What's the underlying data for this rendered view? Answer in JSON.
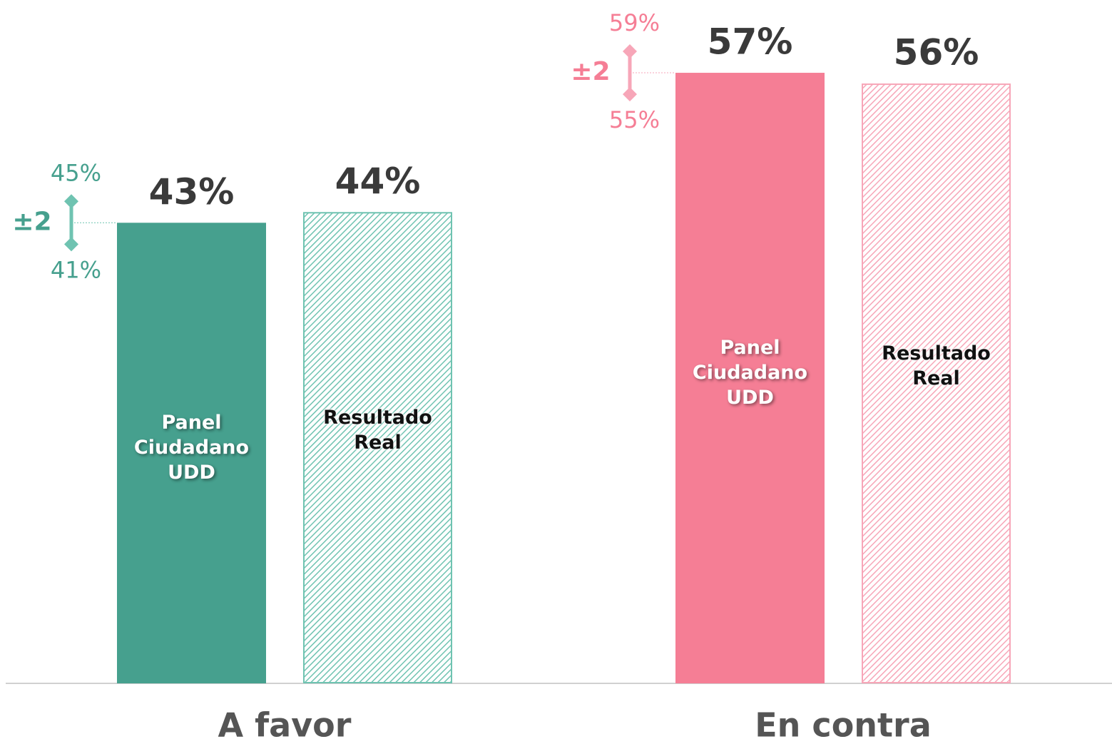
{
  "chart_data": {
    "type": "bar",
    "categories": [
      "A favor",
      "En contra"
    ],
    "series": [
      {
        "name": "Panel Ciudadano UDD",
        "values": [
          43,
          57
        ],
        "value_labels": [
          "43%",
          "57%"
        ],
        "colors": [
          "#46a08e",
          "#f57e95"
        ],
        "errors": [
          2,
          2
        ],
        "error_labels": [
          "±2",
          "±2"
        ],
        "upper_labels": [
          "45%",
          "59%"
        ],
        "lower_labels": [
          "41%",
          "55%"
        ]
      },
      {
        "name": "Resultado Real",
        "values": [
          44,
          56
        ],
        "value_labels": [
          "44%",
          "56%"
        ],
        "colors": [
          "#6fc3b1",
          "#f7a6b8"
        ],
        "hatch": true
      }
    ],
    "ylim": [
      0,
      60
    ]
  }
}
